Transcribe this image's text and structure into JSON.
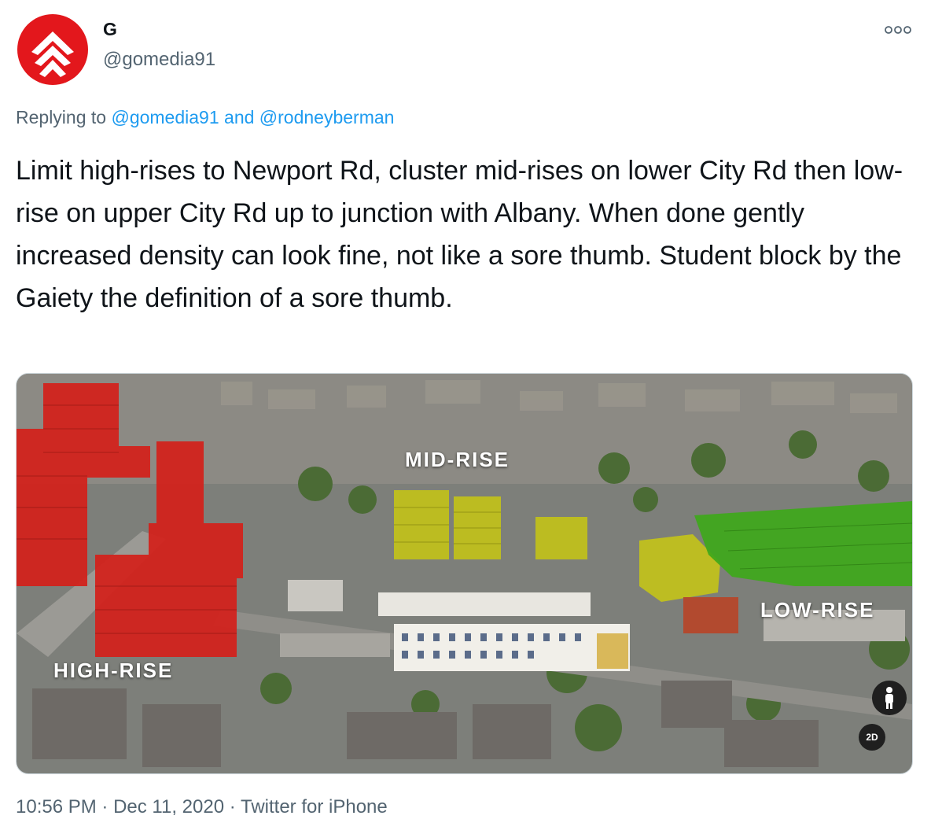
{
  "author": {
    "name": "G",
    "handle": "@gomedia91",
    "avatar_icon": "red-chevron-logo-icon"
  },
  "more_icon": "more-options-icon",
  "reply": {
    "prefix": "Replying to",
    "user1": "@gomedia91",
    "conjunction": "and",
    "user2": "@rodneyberman"
  },
  "tweet": {
    "text": "Limit high-rises to Newport Rd, cluster mid-rises on lower City Rd then low-rise on upper City Rd up to junction with Albany. When done gently increased density can look fine, not like a sore thumb. Student block by the Gaiety the definition of a sore thumb."
  },
  "media": {
    "labels": {
      "mid": "MID-RISE",
      "high": "HIGH-RISE",
      "low": "LOW-RISE"
    },
    "pegman_icon": "street-view-pegman-icon",
    "view_toggle": "2D"
  },
  "meta": {
    "time": "10:56 PM",
    "sep1": "·",
    "date": "Dec 11, 2020",
    "sep2": "·",
    "source": "Twitter for iPhone"
  },
  "colors": {
    "link": "#1d9bf0",
    "secondary": "#536471",
    "high_rise": "#d4201a",
    "mid_rise": "#c2c21a",
    "low_rise": "#3ea81a"
  }
}
